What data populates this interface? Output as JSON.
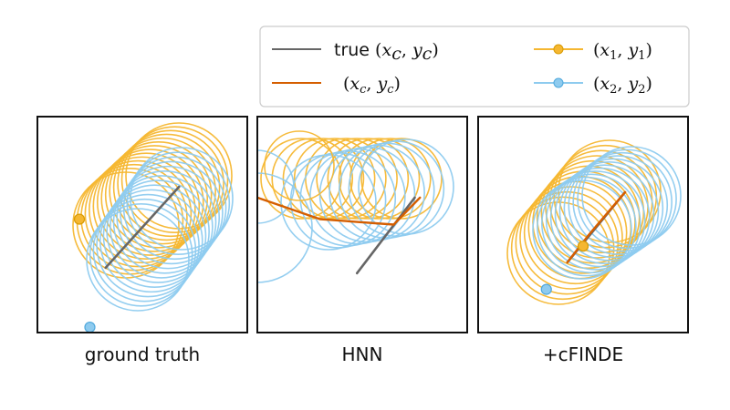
{
  "colors": {
    "true_path": "#666666",
    "pred_path": "#d55e00",
    "body1": "#f5b731",
    "body2": "#8ecbef",
    "frame": "#111111",
    "legend_border": "#cccccc"
  },
  "legend": {
    "true_prefix": "true ",
    "true_label": "(x_c, y_c)",
    "pred_label": "(x_c, y_c)",
    "body1_label": "(x_1, y_1)",
    "body2_label": "(x_2, y_2)"
  },
  "chart_data": [
    {
      "type": "line",
      "title": "ground truth",
      "series": [
        {
          "name": "true (x_c, y_c)",
          "x": [
            -0.35,
            0.35
          ],
          "y": [
            -0.4,
            0.35
          ]
        },
        {
          "name": "(x_1, y_1)",
          "start": [
            -0.6,
            0.05
          ]
        },
        {
          "name": "(x_2, y_2)",
          "start": [
            -0.5,
            -0.95
          ]
        }
      ]
    },
    {
      "type": "line",
      "title": "HNN",
      "series": [
        {
          "name": "true (x_c, y_c)",
          "x": [
            -0.05,
            0.5
          ],
          "y": [
            -0.45,
            0.25
          ]
        },
        {
          "name": "(x_c, y_c)",
          "x": [
            -1.0,
            -0.4,
            0.3,
            0.55
          ],
          "y": [
            0.25,
            0.05,
            0.0,
            0.25
          ]
        }
      ]
    },
    {
      "type": "line",
      "title": "+cFINDE",
      "series": [
        {
          "name": "true (x_c, y_c)",
          "x": [
            -0.15,
            0.4
          ],
          "y": [
            -0.35,
            0.3
          ]
        },
        {
          "name": "(x_c, y_c)",
          "x": [
            -0.15,
            0.05,
            0.4
          ],
          "y": [
            -0.35,
            -0.1,
            0.3
          ]
        },
        {
          "name": "(x_1, y_1)",
          "start": [
            0.0,
            -0.2
          ]
        },
        {
          "name": "(x_2, y_2)",
          "start": [
            -0.35,
            -0.6
          ]
        }
      ]
    }
  ]
}
